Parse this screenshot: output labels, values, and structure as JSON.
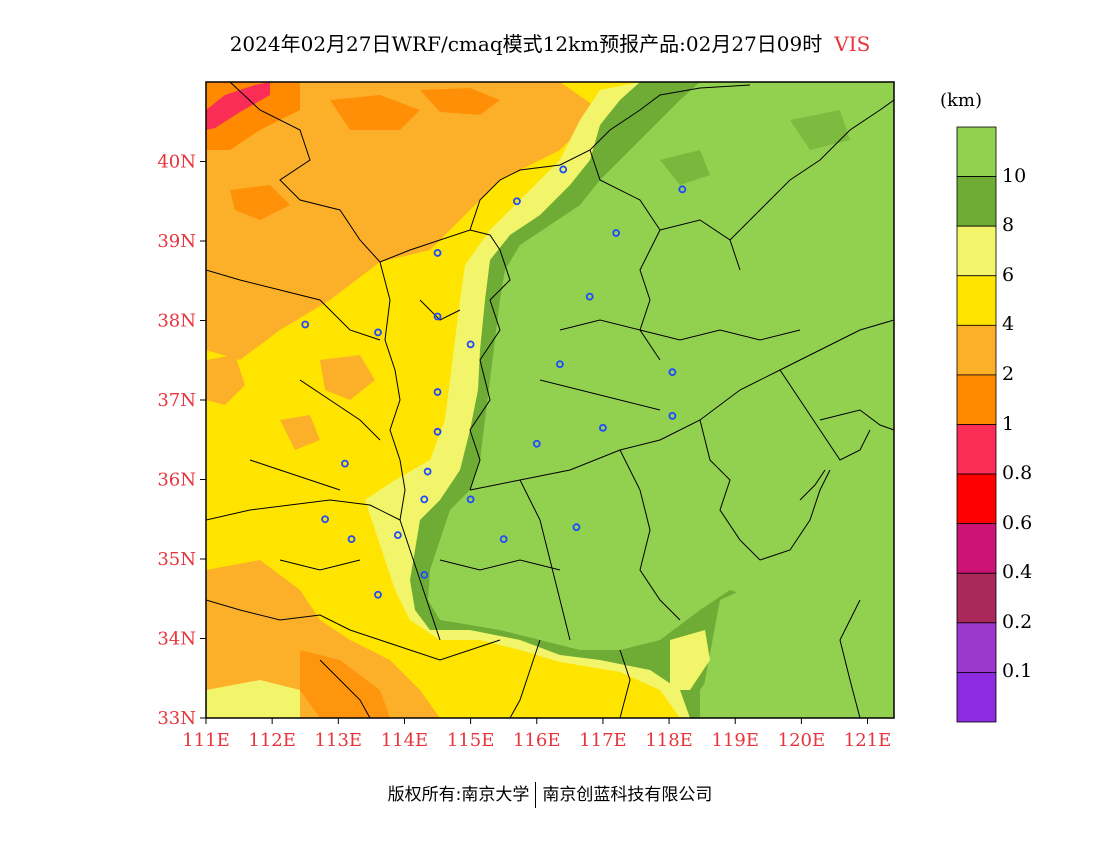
{
  "header": {
    "title": "2024年02月27日WRF/cmaq模式12km预报产品:02月27日09时",
    "variable": "VIS"
  },
  "axes": {
    "lat_labels": [
      "40N",
      "39N",
      "38N",
      "37N",
      "36N",
      "35N",
      "34N",
      "33N"
    ],
    "lon_labels": [
      "111E",
      "112E",
      "113E",
      "114E",
      "115E",
      "116E",
      "117E",
      "118E",
      "119E",
      "120E",
      "121E"
    ]
  },
  "legend": {
    "unit": "(km)",
    "levels": [
      {
        "label": "10",
        "color": "#92d050"
      },
      {
        "label": "8",
        "color": "#6fac35"
      },
      {
        "label": "6",
        "color": "#f2f56a"
      },
      {
        "label": "4",
        "color": "#ffe400"
      },
      {
        "label": "2",
        "color": "#fcb02a"
      },
      {
        "label": "1",
        "color": "#ff8a00"
      },
      {
        "label": "0.8",
        "color": "#fa2d57"
      },
      {
        "label": "0.6",
        "color": "#ff0000"
      },
      {
        "label": "0.4",
        "color": "#cc1477"
      },
      {
        "label": "0.2",
        "color": "#a9295c"
      },
      {
        "label": "0.1",
        "color": "#9c38cc"
      },
      {
        "label": "",
        "color": "#8c2be2"
      }
    ]
  },
  "footer": {
    "left": "版权所有:南京大学",
    "right": "南京创蓝科技有限公司"
  },
  "map": {
    "lat_range": [
      33,
      41
    ],
    "lon_range": [
      111,
      121.4
    ],
    "city_marker_color": "#1f4bff"
  }
}
